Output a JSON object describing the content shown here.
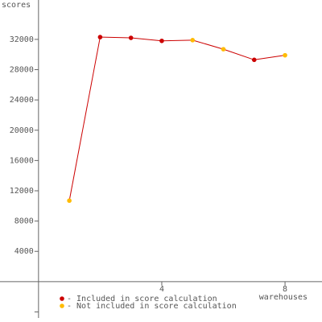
{
  "chart_data": {
    "type": "line",
    "y_label": "scores",
    "x_label": "warehouses",
    "x": [
      1,
      2,
      3,
      4,
      5,
      6,
      7,
      8
    ],
    "series": [
      {
        "name": "- Included in score calculation",
        "color": "#cc0000",
        "values": [
          null,
          32300,
          32200,
          31800,
          null,
          null,
          29300,
          null
        ]
      },
      {
        "name": "- Not included in score calculation",
        "color": "#ffbb00",
        "values": [
          10700,
          null,
          null,
          null,
          31900,
          30700,
          null,
          29900
        ]
      }
    ],
    "line_color": "#cc0000",
    "xlim": [
      -1.25,
      9.2
    ],
    "xticks": [
      4,
      8
    ],
    "ylim": [
      -4800,
      37200
    ],
    "yticks": [
      4000,
      8000,
      12000,
      16000,
      20000,
      24000,
      28000,
      32000
    ],
    "unlabeled_yticks": [
      -4000
    ],
    "grid": false
  }
}
